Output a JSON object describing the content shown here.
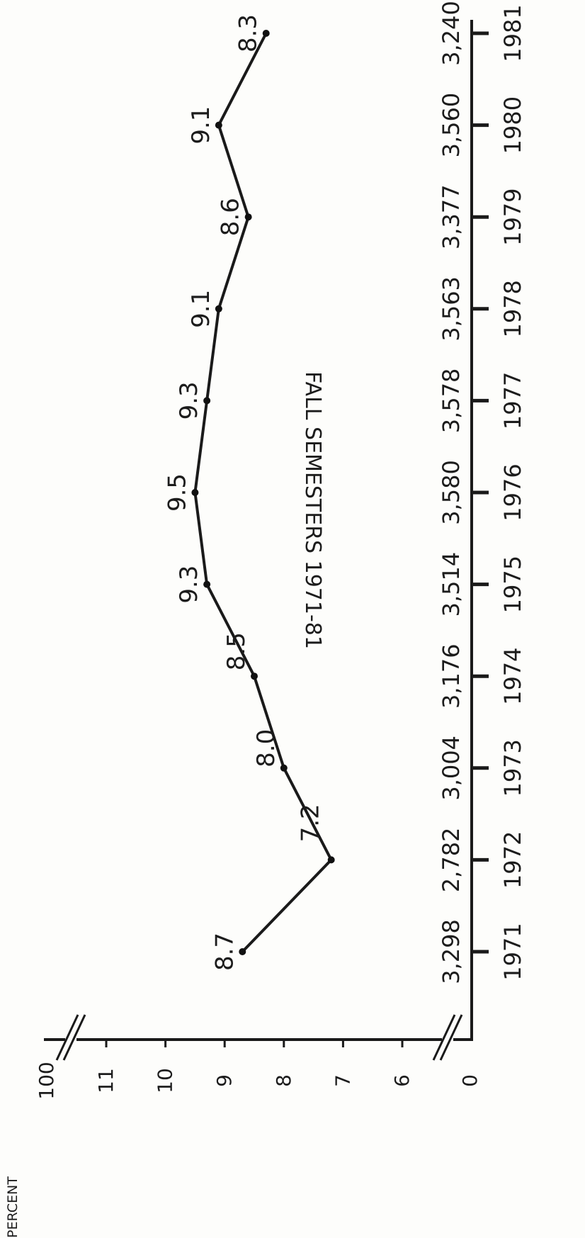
{
  "page": {
    "title_partial": "FALL SEMESTERS 1971-81"
  },
  "chart_data": {
    "type": "line",
    "title": "FALL SEMESTERS 1971-81",
    "ylabel": "PERCENT",
    "orientation": "rotated-90-clockwise",
    "categories": [
      "1971",
      "1972",
      "1973",
      "1974",
      "1975",
      "1976",
      "1977",
      "1978",
      "1979",
      "1980",
      "1981"
    ],
    "counts": [
      "3,298",
      "2,782",
      "3,004",
      "3,176",
      "3,514",
      "3,580",
      "3,578",
      "3,563",
      "3,377",
      "3,560",
      "3,240"
    ],
    "values": [
      8.7,
      7.2,
      8.0,
      8.5,
      9.3,
      9.5,
      9.3,
      9.1,
      8.6,
      9.1,
      8.3
    ],
    "value_labels": [
      "8.7",
      "7.2",
      "8.0",
      "8.5",
      "9.3",
      "9.5",
      "9.3",
      "9.1",
      "8.6",
      "9.1",
      "8.3"
    ],
    "y_ticks": [
      {
        "label": "0",
        "value": 0
      },
      {
        "label": "6",
        "value": 6
      },
      {
        "label": "7",
        "value": 7
      },
      {
        "label": "8",
        "value": 8
      },
      {
        "label": "9",
        "value": 9
      },
      {
        "label": "10",
        "value": 10
      },
      {
        "label": "11",
        "value": 11
      },
      {
        "label": "100",
        "value": 100
      }
    ],
    "ylim": [
      6,
      11
    ],
    "axis_breaks": [
      "between 0 and 6",
      "between 11 and 100"
    ],
    "grid": false,
    "line_color": "#1a1a1a"
  }
}
